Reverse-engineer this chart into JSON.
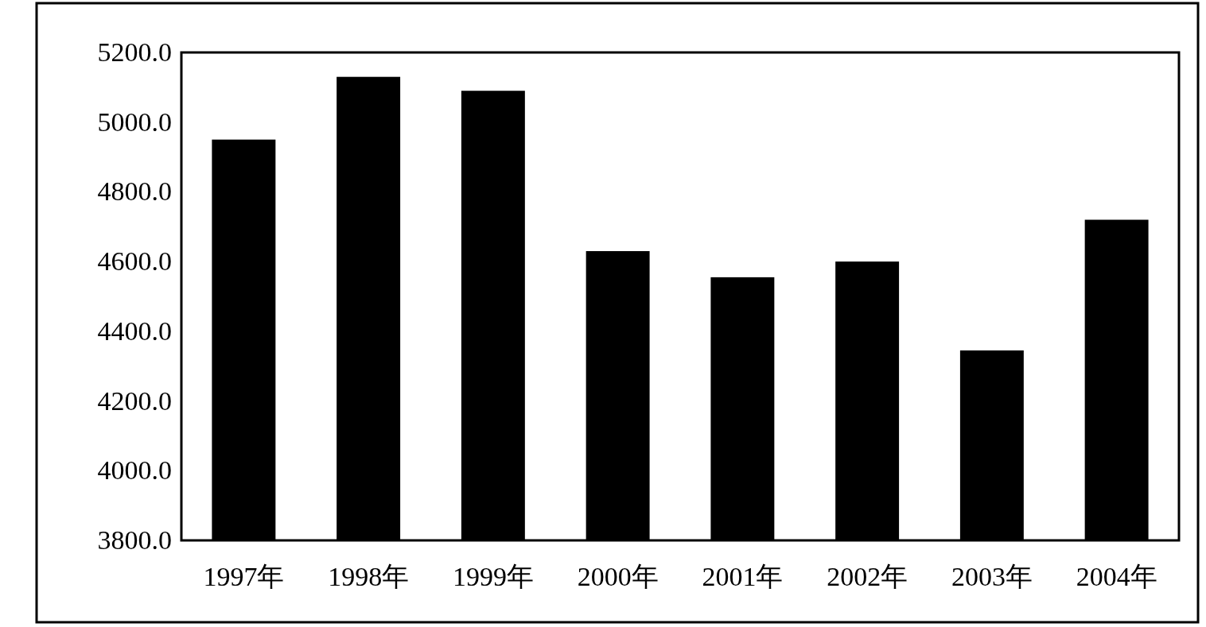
{
  "chart_data": {
    "type": "bar",
    "categories": [
      "1997年",
      "1998年",
      "1999年",
      "2000年",
      "2001年",
      "2002年",
      "2003年",
      "2004年"
    ],
    "values": [
      4950,
      5130,
      5090,
      4630,
      4555,
      4600,
      4345,
      4720
    ],
    "color": "#000000",
    "ylim": [
      3800,
      5200
    ],
    "yticks": [
      {
        "value": 3800,
        "label": "3800.0"
      },
      {
        "value": 4000,
        "label": "4000.0"
      },
      {
        "value": 4200,
        "label": "4200.0"
      },
      {
        "value": 4400,
        "label": "4400.0"
      },
      {
        "value": 4600,
        "label": "4600.0"
      },
      {
        "value": 4800,
        "label": "4800.0"
      },
      {
        "value": 5000,
        "label": "5000.0"
      },
      {
        "value": 5200,
        "label": "5200.0"
      }
    ],
    "grid": false,
    "legend": false
  }
}
